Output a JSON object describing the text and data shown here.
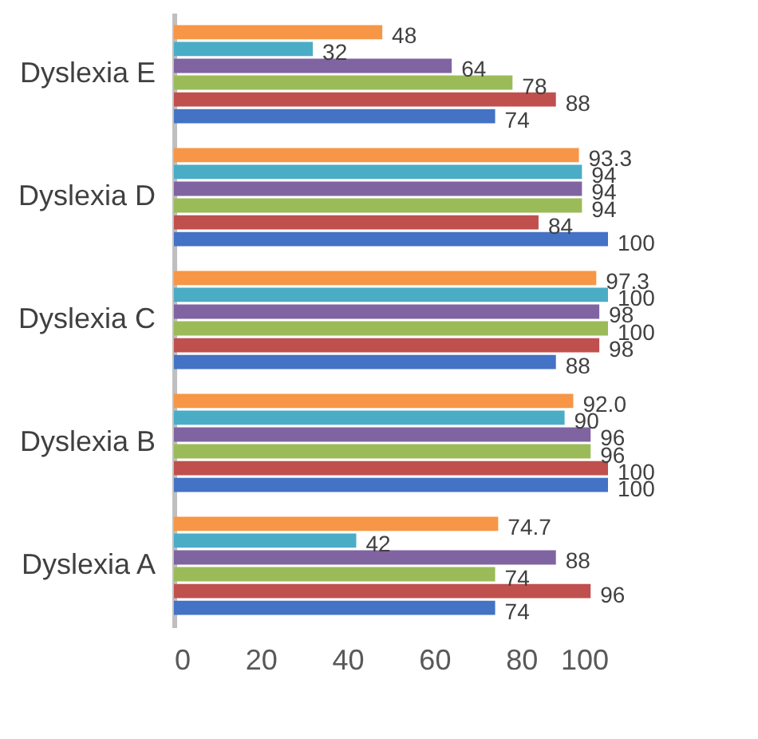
{
  "chart_data": {
    "type": "bar",
    "orientation": "horizontal",
    "categories": [
      "Dyslexia E",
      "Dyslexia D",
      "Dyslexia C",
      "Dyslexia B",
      "Dyslexia A"
    ],
    "xlim": [
      0,
      100
    ],
    "xticks": [
      0,
      20,
      40,
      60,
      80,
      100
    ],
    "series": [
      {
        "color": "#4472c4",
        "values": [
          74,
          100,
          88,
          100,
          74
        ],
        "value_labels": [
          "74",
          "100",
          "88",
          "100",
          "74"
        ]
      },
      {
        "color": "#c0504d",
        "values": [
          88,
          84,
          98,
          100,
          96
        ],
        "value_labels": [
          "88",
          "84",
          "98",
          "100",
          "96"
        ]
      },
      {
        "color": "#9bbb59",
        "values": [
          78,
          94,
          100,
          96,
          74
        ],
        "value_labels": [
          "78",
          "94",
          "100",
          "96",
          "74"
        ]
      },
      {
        "color": "#8064a2",
        "values": [
          64,
          94,
          98,
          96,
          88
        ],
        "value_labels": [
          "64",
          "94",
          "98",
          "96",
          "88"
        ]
      },
      {
        "color": "#4bacc6",
        "values": [
          32,
          94,
          100,
          90,
          42
        ],
        "value_labels": [
          "32",
          "94",
          "100",
          "90",
          "42"
        ]
      },
      {
        "color": "#f79646",
        "values": [
          48,
          93.3,
          97.3,
          92.0,
          74.7
        ],
        "value_labels": [
          "48",
          "93.3",
          "97.3",
          "92.0",
          "74.7"
        ]
      }
    ]
  }
}
